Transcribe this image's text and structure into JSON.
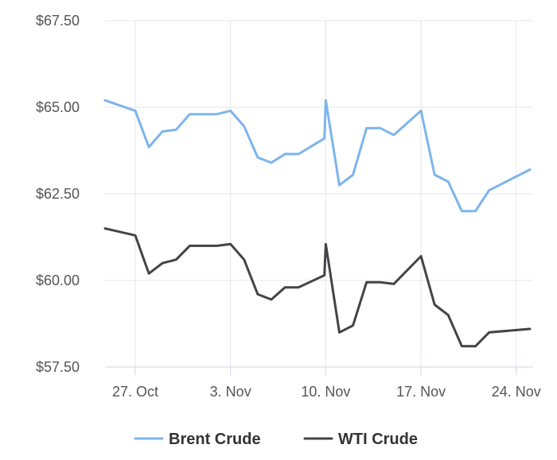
{
  "chart_data": {
    "type": "line",
    "x": [
      "24 Oct",
      "27 Oct",
      "28 Oct",
      "29 Oct",
      "30 Oct",
      "31 Oct",
      "1 Nov",
      "2 Nov",
      "3 Nov",
      "4 Nov",
      "5 Nov",
      "6 Nov",
      "7 Nov",
      "8 Nov",
      "9 Nov",
      "10 Nov",
      "11 Nov",
      "12 Nov",
      "13 Nov",
      "14 Nov",
      "15 Nov",
      "17 Nov",
      "18 Nov",
      "19 Nov",
      "20 Nov",
      "21 Nov",
      "22 Nov",
      "26 Nov"
    ],
    "x_index": [
      -3.7,
      0,
      1,
      2,
      3,
      4,
      5,
      6,
      7,
      8,
      9,
      10,
      11,
      12,
      13.9,
      14,
      15,
      16,
      17,
      18,
      19,
      21,
      22,
      23,
      24,
      25,
      26,
      29
    ],
    "series": [
      {
        "name": "Brent Crude",
        "color": "#7cb5ec",
        "values": [
          65.2,
          64.9,
          63.85,
          64.3,
          64.35,
          64.8,
          64.8,
          64.8,
          64.9,
          64.45,
          63.55,
          63.4,
          63.65,
          63.65,
          64.1,
          65.2,
          62.75,
          63.05,
          64.4,
          64.4,
          64.2,
          64.9,
          63.05,
          62.85,
          62.0,
          62.0,
          62.6,
          63.2
        ]
      },
      {
        "name": "WTI Crude",
        "color": "#434348",
        "values": [
          61.5,
          61.3,
          60.2,
          60.5,
          60.6,
          61.0,
          61.0,
          61.0,
          61.05,
          60.6,
          59.6,
          59.45,
          59.8,
          59.8,
          60.15,
          61.05,
          58.5,
          58.7,
          59.95,
          59.95,
          59.9,
          60.7,
          59.3,
          59.0,
          58.1,
          58.1,
          58.5,
          58.6
        ]
      }
    ],
    "x_ticks": [
      {
        "index": 0,
        "label": "27. Oct"
      },
      {
        "index": 7,
        "label": "3. Nov"
      },
      {
        "index": 14,
        "label": "10. Nov"
      },
      {
        "index": 21,
        "label": "17. Nov"
      },
      {
        "index": 28,
        "label": "24. Nov"
      }
    ],
    "y_ticks": [
      {
        "value": 57.5,
        "label": "$57.50"
      },
      {
        "value": 60.0,
        "label": "$60.00"
      },
      {
        "value": 62.5,
        "label": "$62.50"
      },
      {
        "value": 65.0,
        "label": "$65.00"
      },
      {
        "value": 67.5,
        "label": "$67.50"
      }
    ],
    "ylim": [
      57.5,
      67.5
    ],
    "grid": true,
    "legend_position": "bottom-center",
    "title": "",
    "xlabel": "",
    "ylabel": ""
  }
}
